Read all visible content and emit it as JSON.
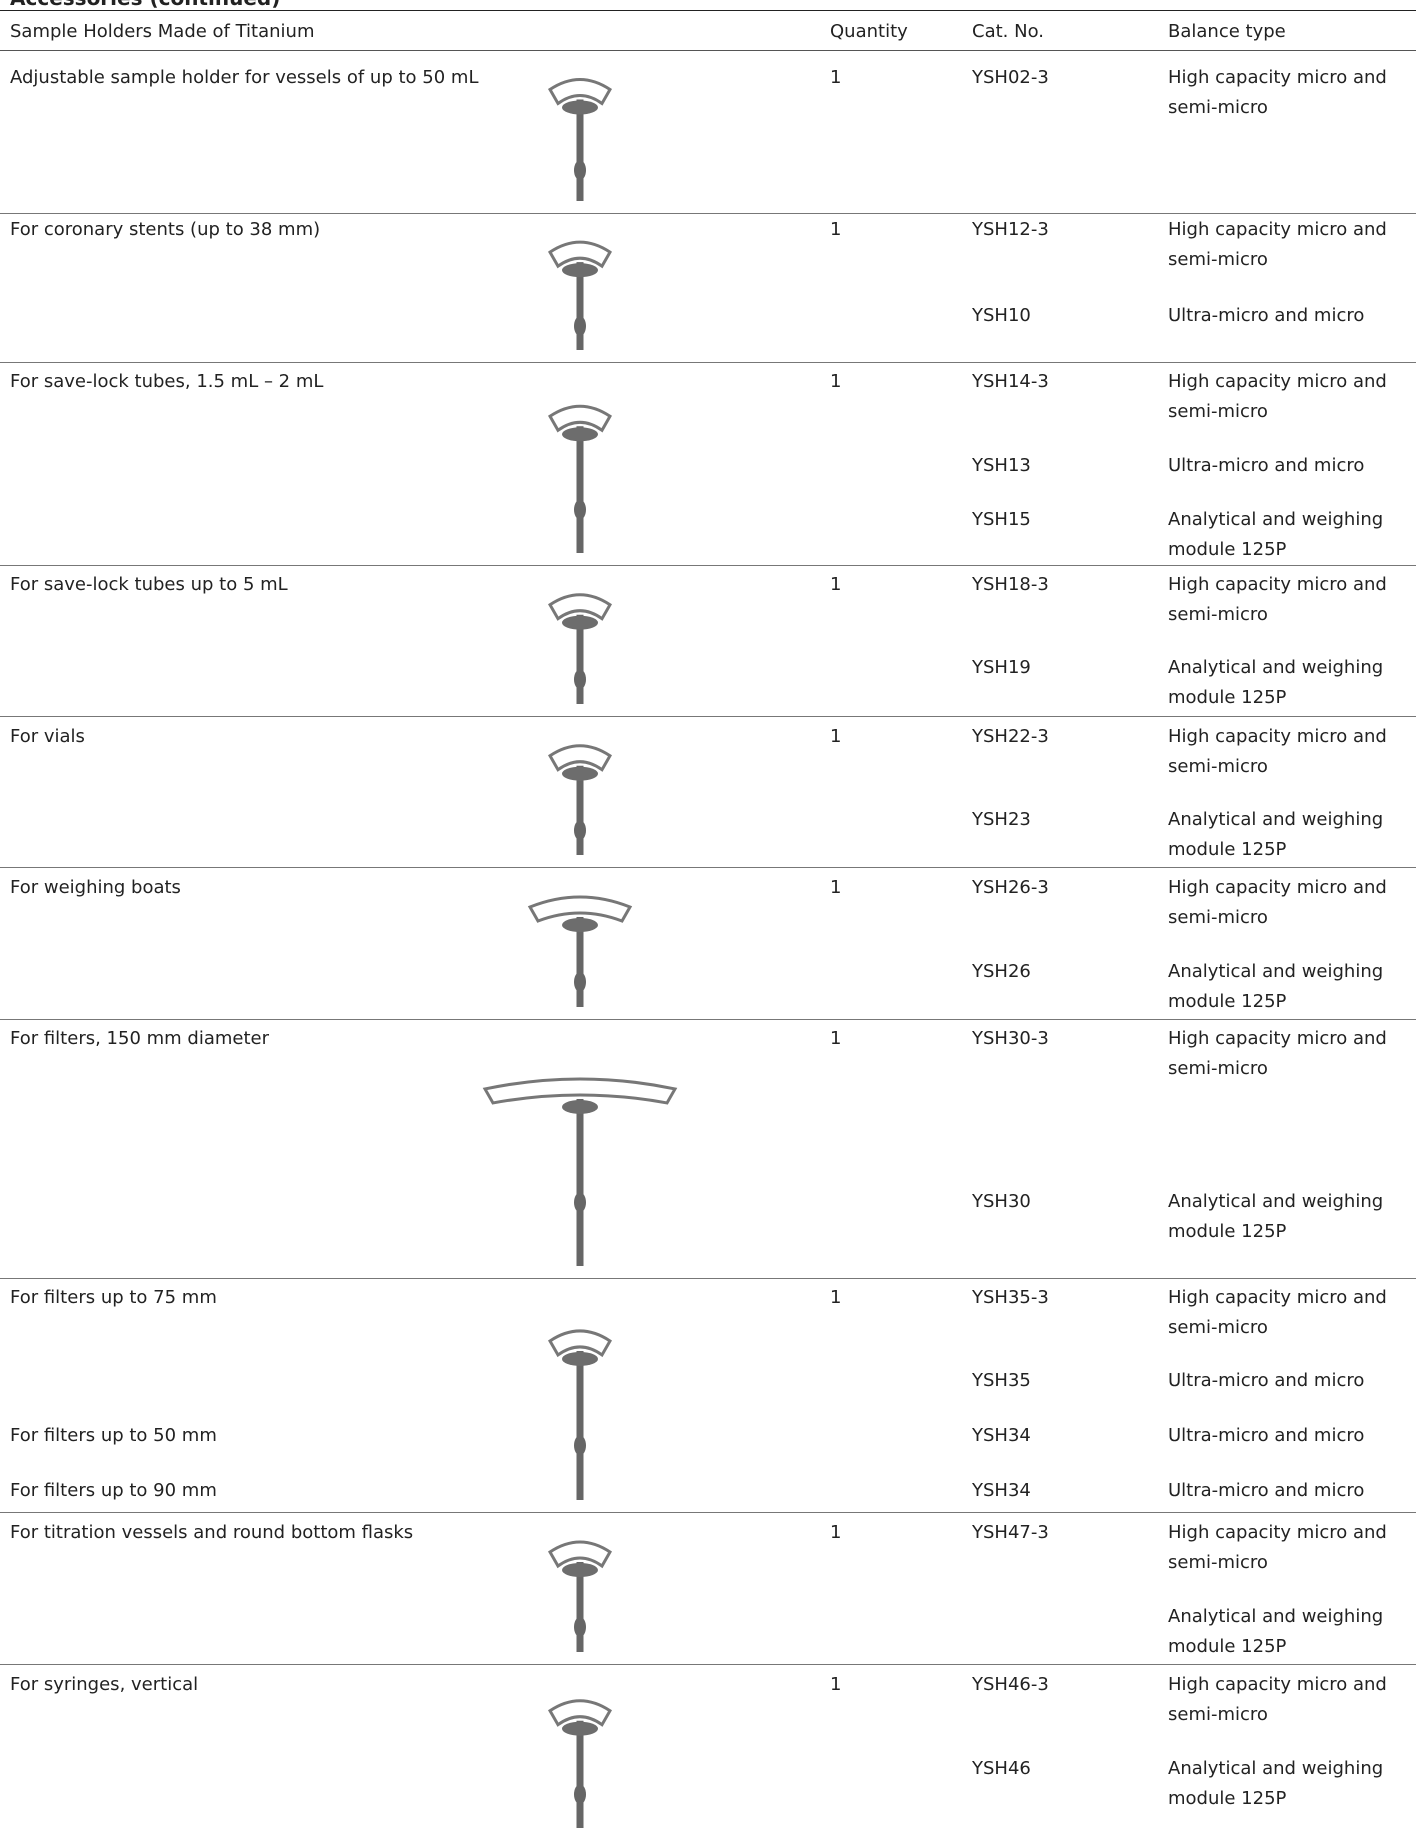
{
  "header": {
    "section_title": "Accessories (continued)",
    "columns": [
      "Sample Holders Made of Titanium",
      "Quantity",
      "Cat. No.",
      "Balance type"
    ]
  },
  "table": {
    "rows": [
      {
        "description": "Adjustable sample holder for vessels of up to 50 mL",
        "quantity": "1",
        "items": [
          {
            "cat_no": "YSH02-3",
            "balance_type": "High capacity micro and semi-micro"
          }
        ]
      },
      {
        "description": "For coronary stents (up to 38 mm)",
        "quantity": "1",
        "items": [
          {
            "cat_no": "YSH12-3",
            "balance_type": "High capacity micro and semi-micro"
          },
          {
            "cat_no": "YSH10",
            "balance_type": "Ultra-micro and micro"
          }
        ]
      },
      {
        "description": "For save-lock tubes, 1.5 mL – 2 mL",
        "quantity": "1",
        "items": [
          {
            "cat_no": "YSH14-3",
            "balance_type": "High capacity micro and semi-micro"
          },
          {
            "cat_no": "YSH13",
            "balance_type": "Ultra-micro and micro"
          },
          {
            "cat_no": "YSH15",
            "balance_type": "Analytical and weighing module 125P"
          }
        ]
      },
      {
        "description": "For save-lock tubes up to 5 mL",
        "quantity": "1",
        "items": [
          {
            "cat_no": "YSH18-3",
            "balance_type": "High capacity micro and semi-micro"
          },
          {
            "cat_no": "YSH19",
            "balance_type": "Analytical and weighing module 125P"
          }
        ]
      },
      {
        "description": "For vials",
        "quantity": "1",
        "items": [
          {
            "cat_no": "YSH22-3",
            "balance_type": "High capacity micro and semi-micro"
          },
          {
            "cat_no": "YSH23",
            "balance_type": "Analytical and weighing module 125P"
          }
        ]
      },
      {
        "description": "For weighing boats",
        "quantity": "1",
        "items": [
          {
            "cat_no": "YSH26-3",
            "balance_type": "High capacity micro and semi-micro"
          },
          {
            "cat_no": "YSH26",
            "balance_type": "Analytical and weighing module 125P"
          }
        ]
      },
      {
        "description": "For filters, 150 mm diameter",
        "quantity": "1",
        "items": [
          {
            "cat_no": "YSH30-3",
            "balance_type": "High capacity micro and semi-micro"
          },
          {
            "cat_no": "YSH30",
            "balance_type": "Analytical and weighing module 125P"
          }
        ]
      },
      {
        "description": "For filters up to 75 mm",
        "quantity": "1",
        "items": [
          {
            "cat_no": "YSH35-3",
            "balance_type": "High capacity micro and semi-micro"
          },
          {
            "cat_no": "YSH35",
            "balance_type": "Ultra-micro and micro"
          },
          {
            "description": "For filters up to 50 mm",
            "cat_no": "YSH34",
            "balance_type": "Ultra-micro and micro"
          },
          {
            "description": "For filters up to 90 mm",
            "cat_no": "YSH34",
            "balance_type": "Ultra-micro and micro"
          }
        ]
      },
      {
        "description": "For titration vessels and round bottom flasks",
        "quantity": "1",
        "items": [
          {
            "cat_no": "YSH47-3",
            "balance_type": "High capacity micro and semi-micro"
          },
          {
            "balance_type": "Analytical and weighing module 125P"
          }
        ]
      },
      {
        "description": "For syringes, vertical",
        "quantity": "1",
        "items": [
          {
            "cat_no": "YSH46-3",
            "balance_type": "High capacity micro and semi-micro"
          },
          {
            "cat_no": "YSH46",
            "balance_type": "Analytical and weighing module 125P"
          }
        ]
      }
    ]
  }
}
